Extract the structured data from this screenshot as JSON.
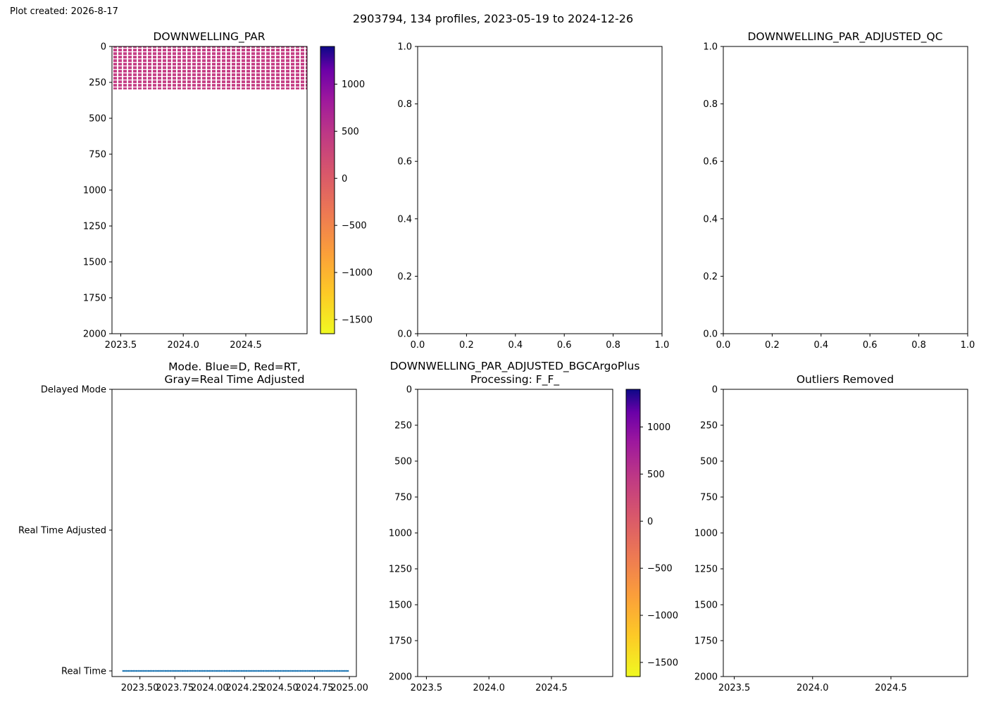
{
  "header": {
    "plot_created": "Plot created: 2026-8-17",
    "suptitle": "2903794, 134 profiles, 2023-05-19 to 2024-12-26"
  },
  "colors": {
    "pcolor_cell": "#c53f85",
    "mode_points": "#1f77b4",
    "colormap": "plasma_r"
  },
  "chart_data": [
    {
      "id": "p1",
      "type": "heatmap",
      "title": "DOWNWELLING_PAR",
      "xlim": [
        2023.43,
        2024.99
      ],
      "ylim": [
        2000,
        0
      ],
      "xticks": [
        2023.5,
        2024.0,
        2024.5
      ],
      "xtick_labels": [
        "2023.5",
        "2024.0",
        "2024.5"
      ],
      "yticks": [
        0,
        250,
        500,
        750,
        1000,
        1250,
        1500,
        1750,
        2000
      ],
      "ytick_labels": [
        "0",
        "250",
        "500",
        "750",
        "1000",
        "1250",
        "1500",
        "1750",
        "2000"
      ],
      "data_extent": {
        "x": [
          2023.43,
          2024.99
        ],
        "depth": [
          0,
          300
        ],
        "approx_value": 40
      },
      "colorbar": {
        "range": [
          -1650,
          1400
        ],
        "ticks": [
          -1500,
          -1000,
          -500,
          0,
          500,
          1000
        ],
        "tick_labels": [
          "−1500",
          "−1000",
          "−500",
          "0",
          "500",
          "1000"
        ]
      }
    },
    {
      "id": "p2",
      "type": "scatter",
      "title": "",
      "xlim": [
        0,
        1
      ],
      "ylim": [
        0,
        1
      ],
      "xticks": [
        0.0,
        0.2,
        0.4,
        0.6,
        0.8,
        1.0
      ],
      "xtick_labels": [
        "0.0",
        "0.2",
        "0.4",
        "0.6",
        "0.8",
        "1.0"
      ],
      "yticks": [
        0.0,
        0.2,
        0.4,
        0.6,
        0.8,
        1.0
      ],
      "ytick_labels": [
        "0.0",
        "0.2",
        "0.4",
        "0.6",
        "0.8",
        "1.0"
      ]
    },
    {
      "id": "p3",
      "type": "scatter",
      "title": "DOWNWELLING_PAR_ADJUSTED_QC",
      "xlim": [
        0,
        1
      ],
      "ylim": [
        0,
        1
      ],
      "xticks": [
        0.0,
        0.2,
        0.4,
        0.6,
        0.8,
        1.0
      ],
      "xtick_labels": [
        "0.0",
        "0.2",
        "0.4",
        "0.6",
        "0.8",
        "1.0"
      ],
      "yticks": [
        0.0,
        0.2,
        0.4,
        0.6,
        0.8,
        1.0
      ],
      "ytick_labels": [
        "0.0",
        "0.2",
        "0.4",
        "0.6",
        "0.8",
        "1.0"
      ]
    },
    {
      "id": "p4",
      "type": "scatter",
      "title": [
        "Mode. Blue=D, Red=RT,",
        "Gray=Real Time Adjusted"
      ],
      "xlim": [
        2023.3,
        2025.05
      ],
      "ylim": [
        -0.04,
        2.0
      ],
      "xticks": [
        2023.5,
        2023.75,
        2024.0,
        2024.25,
        2024.5,
        2024.75,
        2025.0
      ],
      "xtick_labels": [
        "2023.50",
        "2023.75",
        "2024.00",
        "2024.25",
        "2024.50",
        "2024.75",
        "2025.00"
      ],
      "yticks": [
        0,
        1,
        2
      ],
      "ytick_labels": [
        "Real Time",
        "Real Time Adjusted",
        "Delayed Mode"
      ],
      "points": {
        "x_start": 2023.38,
        "x_end": 2024.99,
        "count": 134,
        "y": 0
      }
    },
    {
      "id": "p5",
      "type": "heatmap",
      "title": [
        "DOWNWELLING_PAR_ADJUSTED_BGCArgoPlus",
        "Processing: F_F_"
      ],
      "xlim": [
        2023.43,
        2024.99
      ],
      "ylim": [
        2000,
        0
      ],
      "xticks": [
        2023.5,
        2024.0,
        2024.5
      ],
      "xtick_labels": [
        "2023.5",
        "2024.0",
        "2024.5"
      ],
      "yticks": [
        0,
        250,
        500,
        750,
        1000,
        1250,
        1500,
        1750,
        2000
      ],
      "ytick_labels": [
        "0",
        "250",
        "500",
        "750",
        "1000",
        "1250",
        "1500",
        "1750",
        "2000"
      ],
      "colorbar": {
        "range": [
          -1650,
          1400
        ],
        "ticks": [
          -1500,
          -1000,
          -500,
          0,
          500,
          1000
        ],
        "tick_labels": [
          "−1500",
          "−1000",
          "−500",
          "0",
          "500",
          "1000"
        ]
      }
    },
    {
      "id": "p6",
      "type": "scatter",
      "title": "Outliers Removed",
      "xlim": [
        2023.43,
        2024.99
      ],
      "ylim": [
        2000,
        0
      ],
      "xticks": [
        2023.5,
        2024.0,
        2024.5
      ],
      "xtick_labels": [
        "2023.5",
        "2024.0",
        "2024.5"
      ],
      "yticks": [
        0,
        250,
        500,
        750,
        1000,
        1250,
        1500,
        1750,
        2000
      ],
      "ytick_labels": [
        "0",
        "250",
        "500",
        "750",
        "1000",
        "1250",
        "1500",
        "1750",
        "2000"
      ]
    }
  ]
}
